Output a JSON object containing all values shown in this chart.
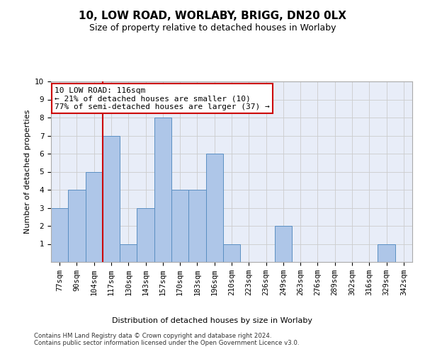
{
  "title1": "10, LOW ROAD, WORLABY, BRIGG, DN20 0LX",
  "title2": "Size of property relative to detached houses in Worlaby",
  "xlabel": "Distribution of detached houses by size in Worlaby",
  "ylabel": "Number of detached properties",
  "categories": [
    "77sqm",
    "90sqm",
    "104sqm",
    "117sqm",
    "130sqm",
    "143sqm",
    "157sqm",
    "170sqm",
    "183sqm",
    "196sqm",
    "210sqm",
    "223sqm",
    "236sqm",
    "249sqm",
    "263sqm",
    "276sqm",
    "289sqm",
    "302sqm",
    "316sqm",
    "329sqm",
    "342sqm"
  ],
  "values": [
    3,
    4,
    5,
    7,
    1,
    3,
    8,
    4,
    4,
    6,
    1,
    0,
    0,
    2,
    0,
    0,
    0,
    0,
    0,
    1,
    0
  ],
  "bar_color": "#aec6e8",
  "bar_edge_color": "#5a8fc2",
  "annotation_text_line1": "10 LOW ROAD: 116sqm",
  "annotation_text_line2": "← 21% of detached houses are smaller (10)",
  "annotation_text_line3": "77% of semi-detached houses are larger (37) →",
  "annotation_box_color": "#ffffff",
  "annotation_box_edge": "#cc0000",
  "vline_color": "#cc0000",
  "ylim": [
    0,
    10
  ],
  "yticks": [
    0,
    1,
    2,
    3,
    4,
    5,
    6,
    7,
    8,
    9,
    10
  ],
  "grid_color": "#cccccc",
  "background_color": "#e8edf8",
  "footer": "Contains HM Land Registry data © Crown copyright and database right 2024.\nContains public sector information licensed under the Open Government Licence v3.0.",
  "title_fontsize": 11,
  "subtitle_fontsize": 9,
  "axis_label_fontsize": 8,
  "tick_fontsize": 7.5,
  "annotation_fontsize": 8
}
